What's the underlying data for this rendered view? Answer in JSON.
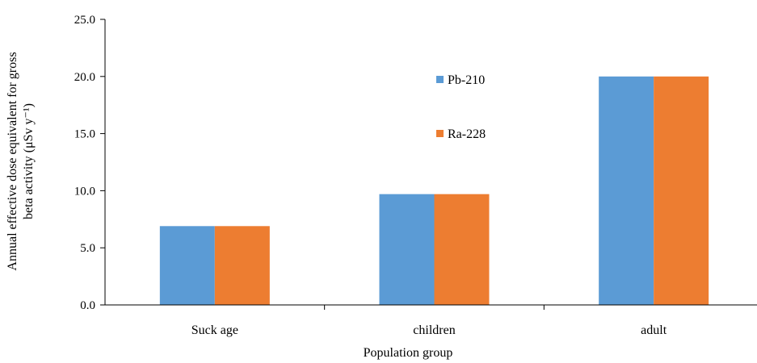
{
  "chart_data": {
    "type": "bar",
    "categories": [
      "Suck age",
      "children",
      "adult"
    ],
    "series": [
      {
        "name": "Pb-210",
        "values": [
          6.9,
          9.7,
          20.0
        ],
        "color": "#5b9bd5"
      },
      {
        "name": "Ra-228",
        "values": [
          6.9,
          9.7,
          20.0
        ],
        "color": "#ed7d31"
      }
    ],
    "xlabel": "Population group",
    "ylabel_line1": "Annual effective dose equivalent  for gross",
    "ylabel_line2": "beta activity (μSv y⁻¹)",
    "ylim": [
      0,
      25
    ],
    "yticks": [
      "0.0",
      "5.0",
      "10.0",
      "15.0",
      "20.0",
      "25.0"
    ],
    "ytick_values": [
      0,
      5,
      10,
      15,
      20,
      25
    ],
    "grid": false,
    "legend_position": "inside-center-top"
  }
}
